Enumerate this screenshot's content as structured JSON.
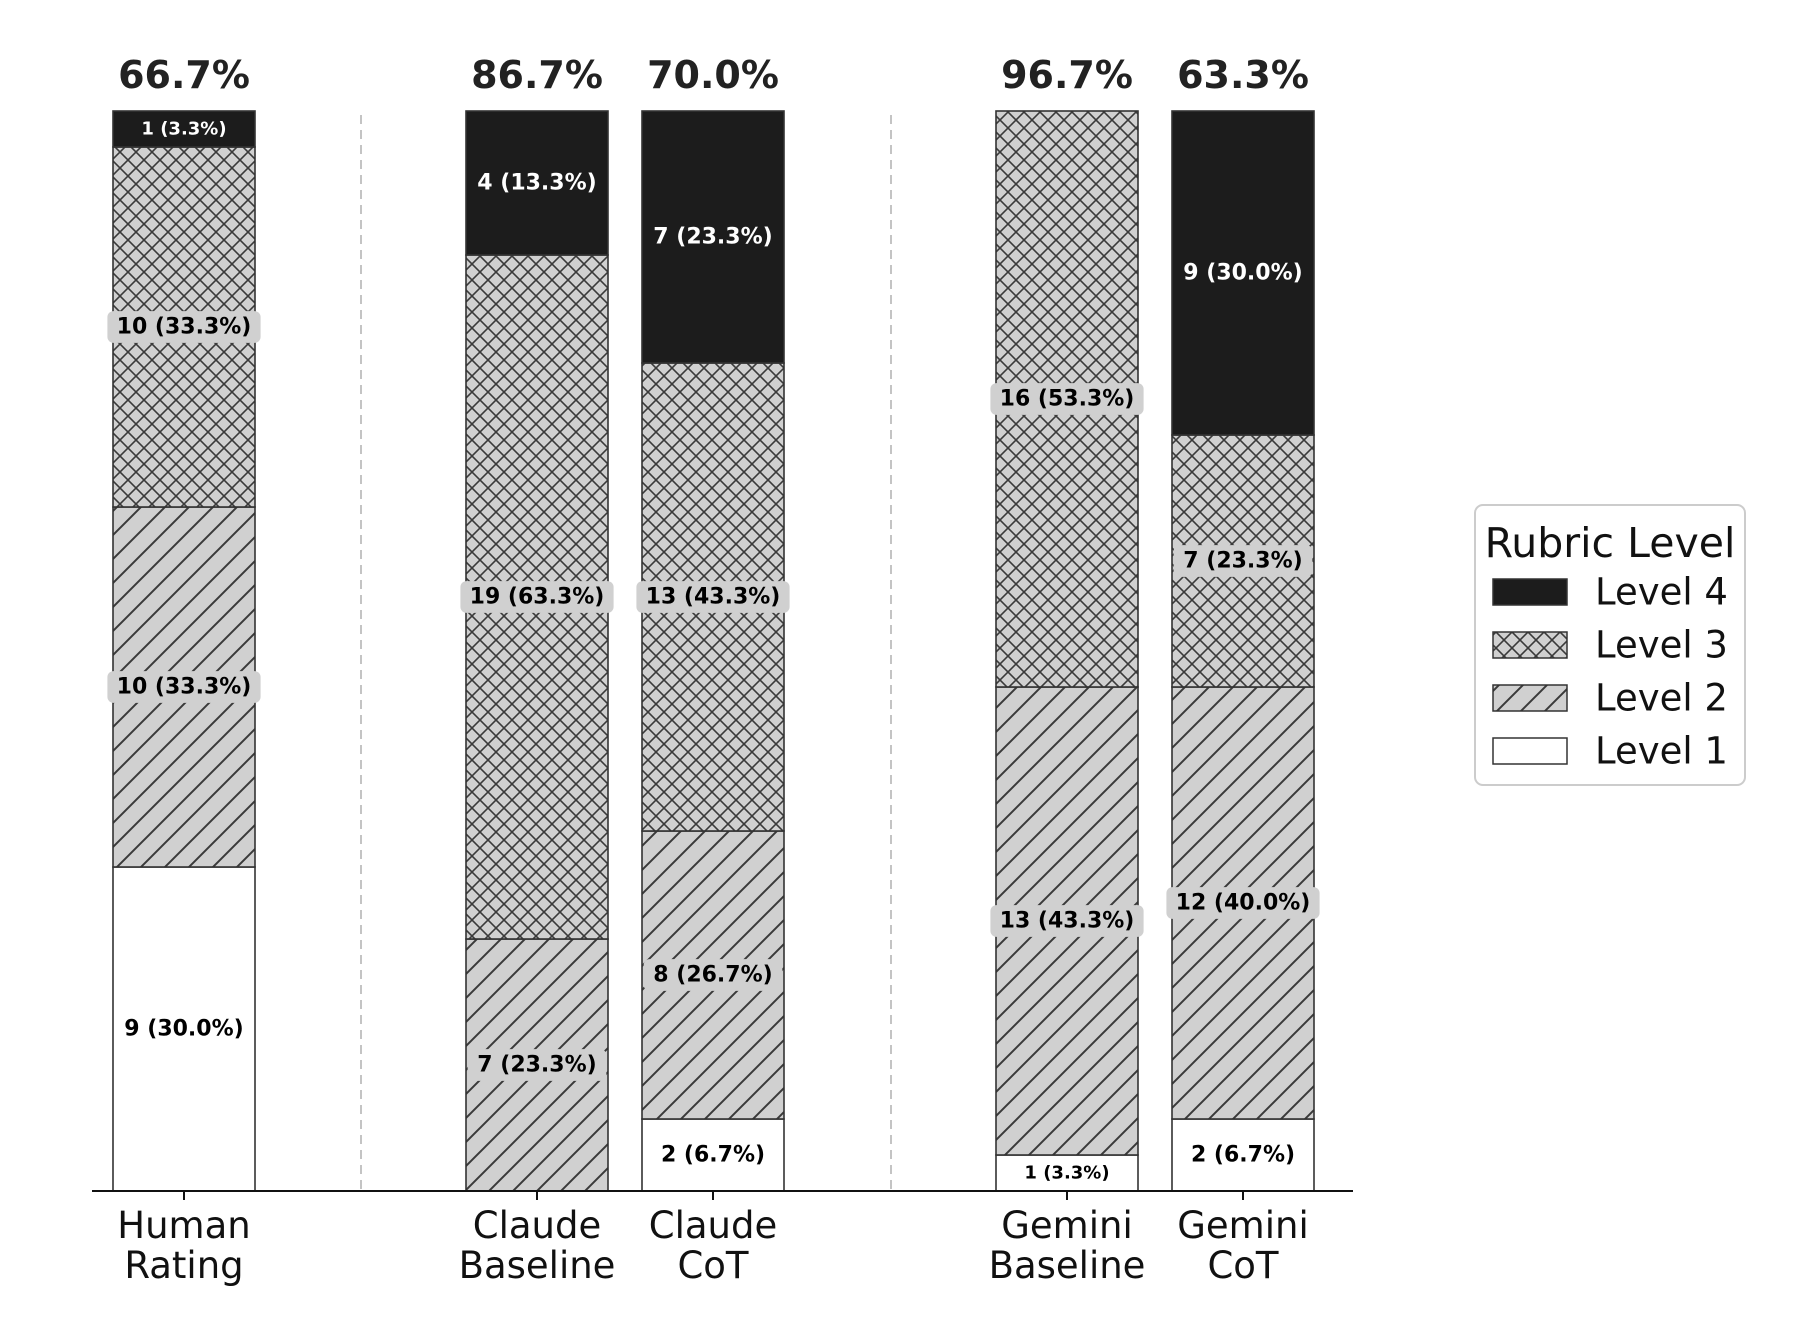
{
  "chart_data": {
    "type": "bar",
    "stacked": true,
    "total": 30,
    "categories": [
      "Human\nRating",
      "Claude\nBaseline",
      "Claude\nCoT",
      "Gemini\nBaseline",
      "Gemini\nCoT"
    ],
    "groups": [
      [
        0
      ],
      [
        1,
        2
      ],
      [
        3,
        4
      ]
    ],
    "top_labels": [
      "66.7%",
      "86.7%",
      "70.0%",
      "96.7%",
      "63.3%"
    ],
    "series": [
      {
        "name": "Level 1",
        "values": [
          9,
          0,
          2,
          1,
          2
        ],
        "labels": [
          "9 (30.0%)",
          "",
          "2 (6.7%)",
          "1 (3.3%)",
          "2 (6.7%)"
        ],
        "fill": "#ffffff",
        "pattern": "none"
      },
      {
        "name": "Level 2",
        "values": [
          10,
          7,
          8,
          13,
          12
        ],
        "labels": [
          "10 (33.3%)",
          "7 (23.3%)",
          "8 (26.7%)",
          "13 (43.3%)",
          "12 (40.0%)"
        ],
        "fill": "#d0d0d0",
        "pattern": "diagonal"
      },
      {
        "name": "Level 3",
        "values": [
          10,
          19,
          13,
          16,
          7
        ],
        "labels": [
          "10 (33.3%)",
          "19 (63.3%)",
          "13 (43.3%)",
          "16 (53.3%)",
          "7 (23.3%)"
        ],
        "fill": "#d0d0d0",
        "pattern": "crosshatch"
      },
      {
        "name": "Level 4",
        "values": [
          1,
          4,
          7,
          0,
          9
        ],
        "labels": [
          "1 (3.3%)",
          "4 (13.3%)",
          "7 (23.3%)",
          "",
          "9 (30.0%)"
        ],
        "fill": "#1c1c1c",
        "pattern": "none"
      }
    ],
    "legend": {
      "title": "Rubric Level",
      "placement": "right",
      "order": [
        "Level 4",
        "Level 3",
        "Level 2",
        "Level 1"
      ]
    },
    "group_separators": true,
    "grid": false
  }
}
